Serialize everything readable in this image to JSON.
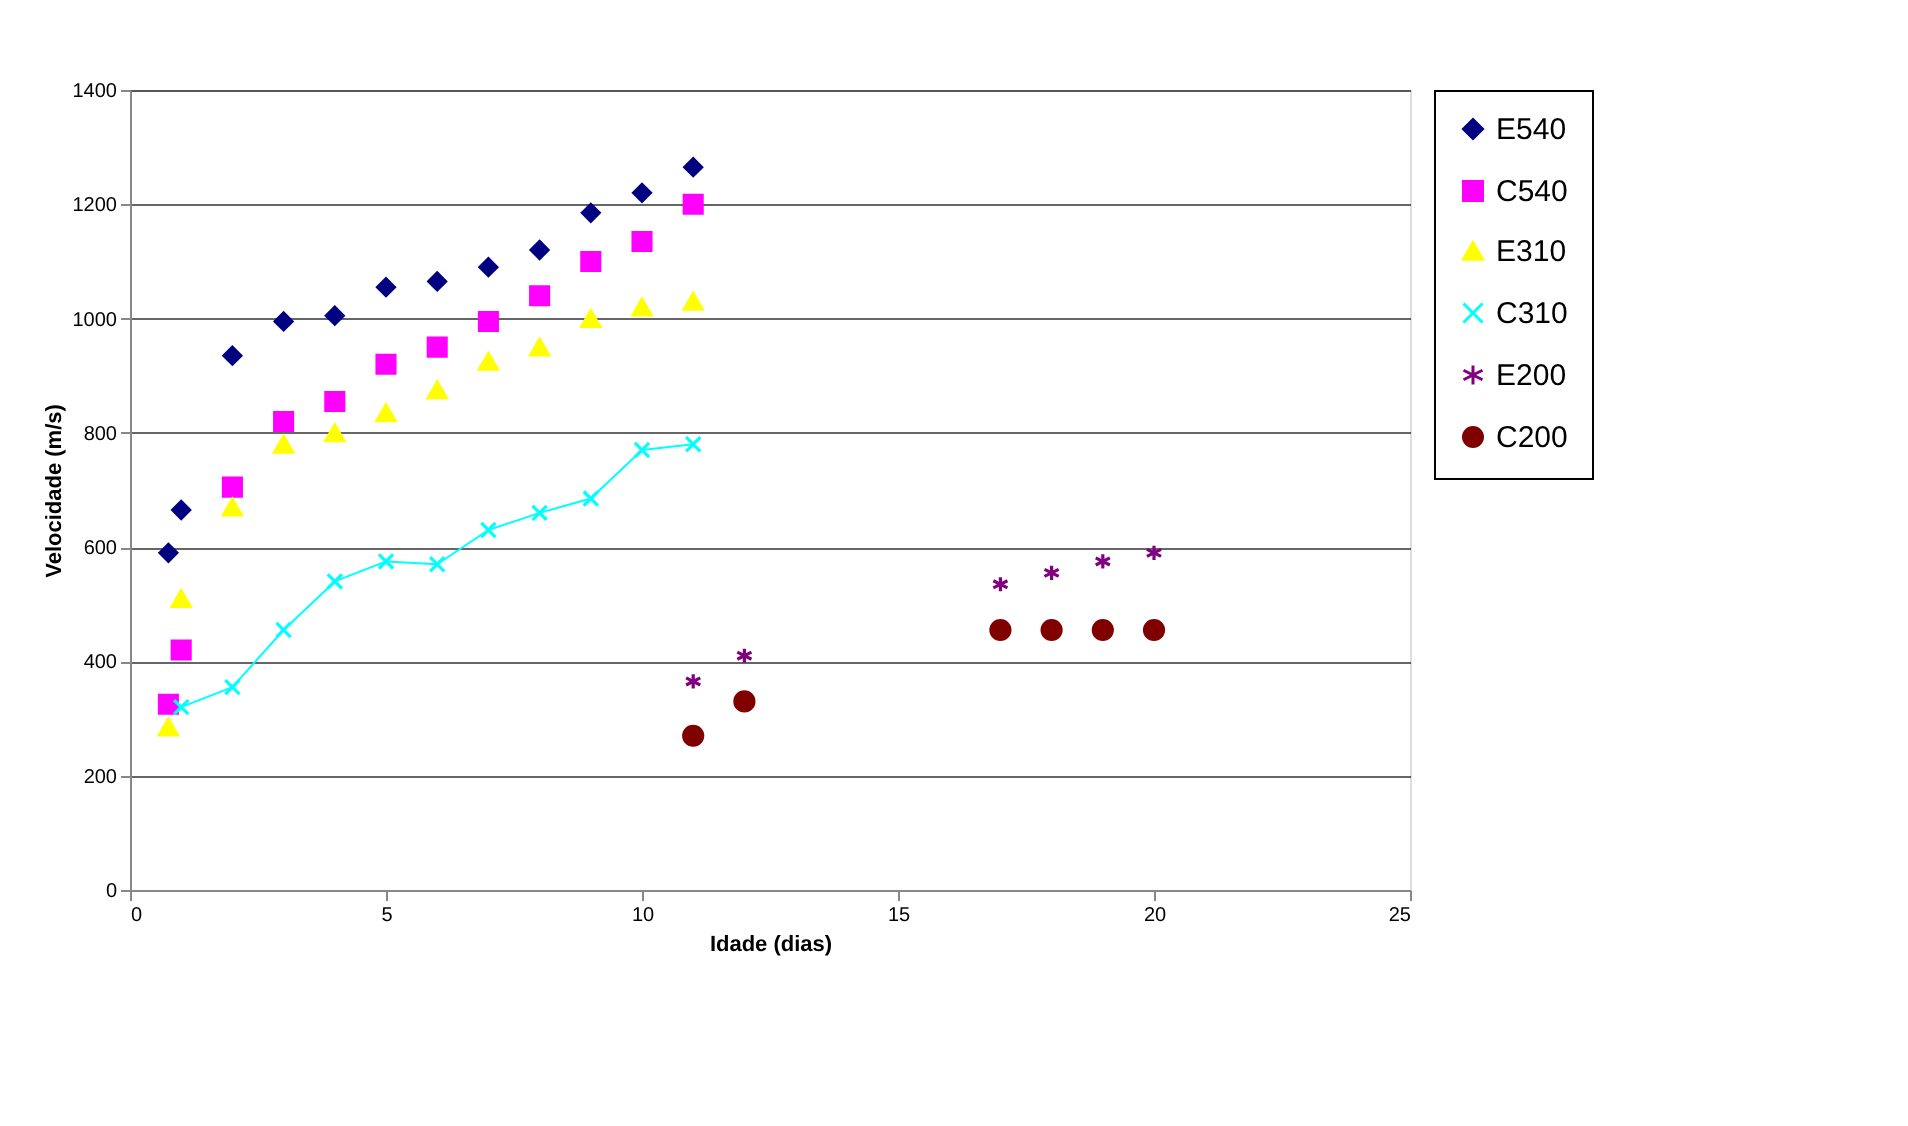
{
  "chart_data": {
    "type": "scatter",
    "xlabel": "Idade (dias)",
    "ylabel": "Velocidade (m/s)",
    "xlim": [
      0,
      25
    ],
    "xticks": [
      0,
      5,
      10,
      15,
      20,
      25
    ],
    "ylim": [
      0,
      1400
    ],
    "yticks": [
      0,
      200,
      400,
      600,
      800,
      1000,
      1200,
      1400
    ],
    "grid": "y",
    "legend": "right",
    "series": [
      {
        "name": "E540",
        "color": "#000080",
        "marker": "diamond",
        "x": [
          0.75,
          1,
          2,
          3,
          4,
          5,
          6,
          7,
          8,
          9,
          10,
          11
        ],
        "values": [
          590,
          665,
          935,
          995,
          1005,
          1055,
          1065,
          1090,
          1120,
          1185,
          1220,
          1265
        ]
      },
      {
        "name": "C540",
        "color": "#ff00ff",
        "marker": "square",
        "x": [
          0.75,
          1,
          2,
          3,
          4,
          5,
          6,
          7,
          8,
          9,
          10,
          11
        ],
        "values": [
          325,
          420,
          705,
          820,
          855,
          920,
          950,
          995,
          1040,
          1100,
          1135,
          1200
        ]
      },
      {
        "name": "E310",
        "color": "#ffff00",
        "marker": "triangle",
        "x": [
          0.75,
          1,
          2,
          3,
          4,
          5,
          6,
          7,
          8,
          9,
          10,
          11
        ],
        "values": [
          285,
          510,
          670,
          780,
          800,
          835,
          875,
          925,
          950,
          1000,
          1020,
          1030
        ]
      },
      {
        "name": "C310",
        "color": "#00ffff",
        "type": "line",
        "marker": "cross",
        "x": [
          1,
          2,
          3,
          4,
          5,
          6,
          7,
          8,
          9,
          10,
          11
        ],
        "values": [
          320,
          355,
          455,
          540,
          575,
          570,
          630,
          660,
          685,
          770,
          780
        ]
      },
      {
        "name": "E200",
        "color": "#800080",
        "marker": "cross",
        "x": [
          11,
          12,
          17,
          18,
          19,
          20
        ],
        "values": [
          365,
          410,
          535,
          555,
          575,
          590
        ]
      },
      {
        "name": "C200",
        "color": "#800000",
        "marker": "circle",
        "x": [
          11,
          12,
          17,
          18,
          19,
          20
        ],
        "values": [
          270,
          330,
          455,
          455,
          455,
          455
        ]
      }
    ]
  }
}
